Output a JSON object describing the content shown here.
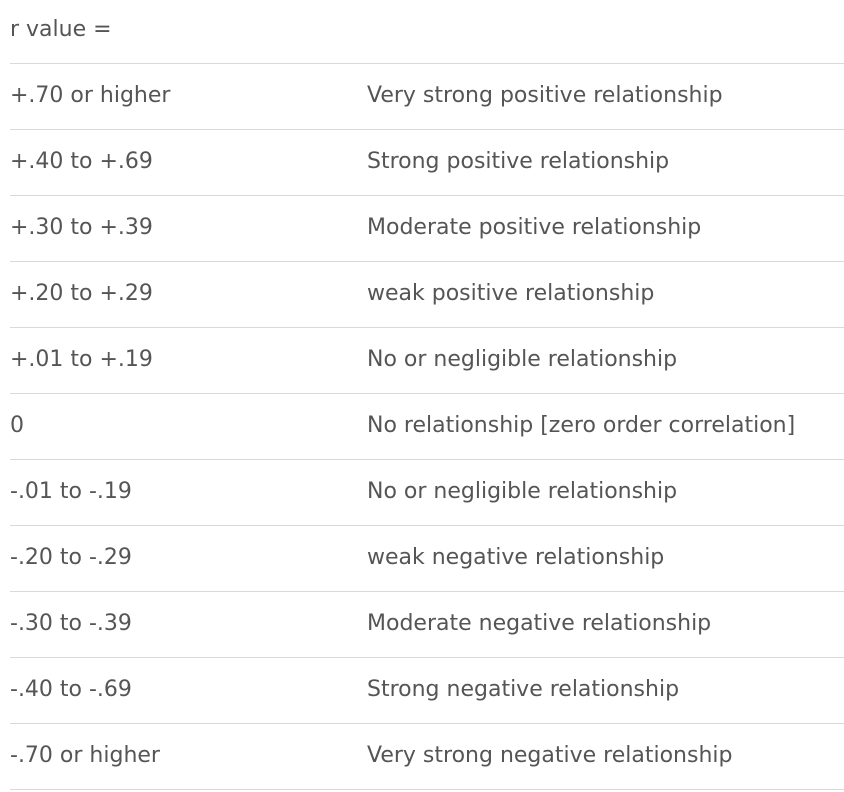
{
  "table": {
    "header": "r value =",
    "rows": [
      {
        "range": "+.70 or higher",
        "description": "Very strong positive relationship"
      },
      {
        "range": "+.40 to +.69",
        "description": "Strong positive relationship"
      },
      {
        "range": "+.30 to +.39",
        "description": "Moderate positive relationship"
      },
      {
        "range": "+.20 to +.29",
        "description": "weak positive relationship"
      },
      {
        "range": "+.01 to +.19",
        "description": "No or negligible relationship"
      },
      {
        "range": "0",
        "description": "No relationship [zero order correlation]"
      },
      {
        "range": "-.01 to -.19",
        "description": "No or negligible relationship"
      },
      {
        "range": "-.20 to -.29",
        "description": "weak negative relationship"
      },
      {
        "range": "-.30 to -.39",
        "description": "Moderate negative relationship"
      },
      {
        "range": "-.40 to -.69",
        "description": "Strong negative relationship"
      },
      {
        "range": "-.70 or higher",
        "description": "Very strong negative relationship"
      }
    ]
  }
}
